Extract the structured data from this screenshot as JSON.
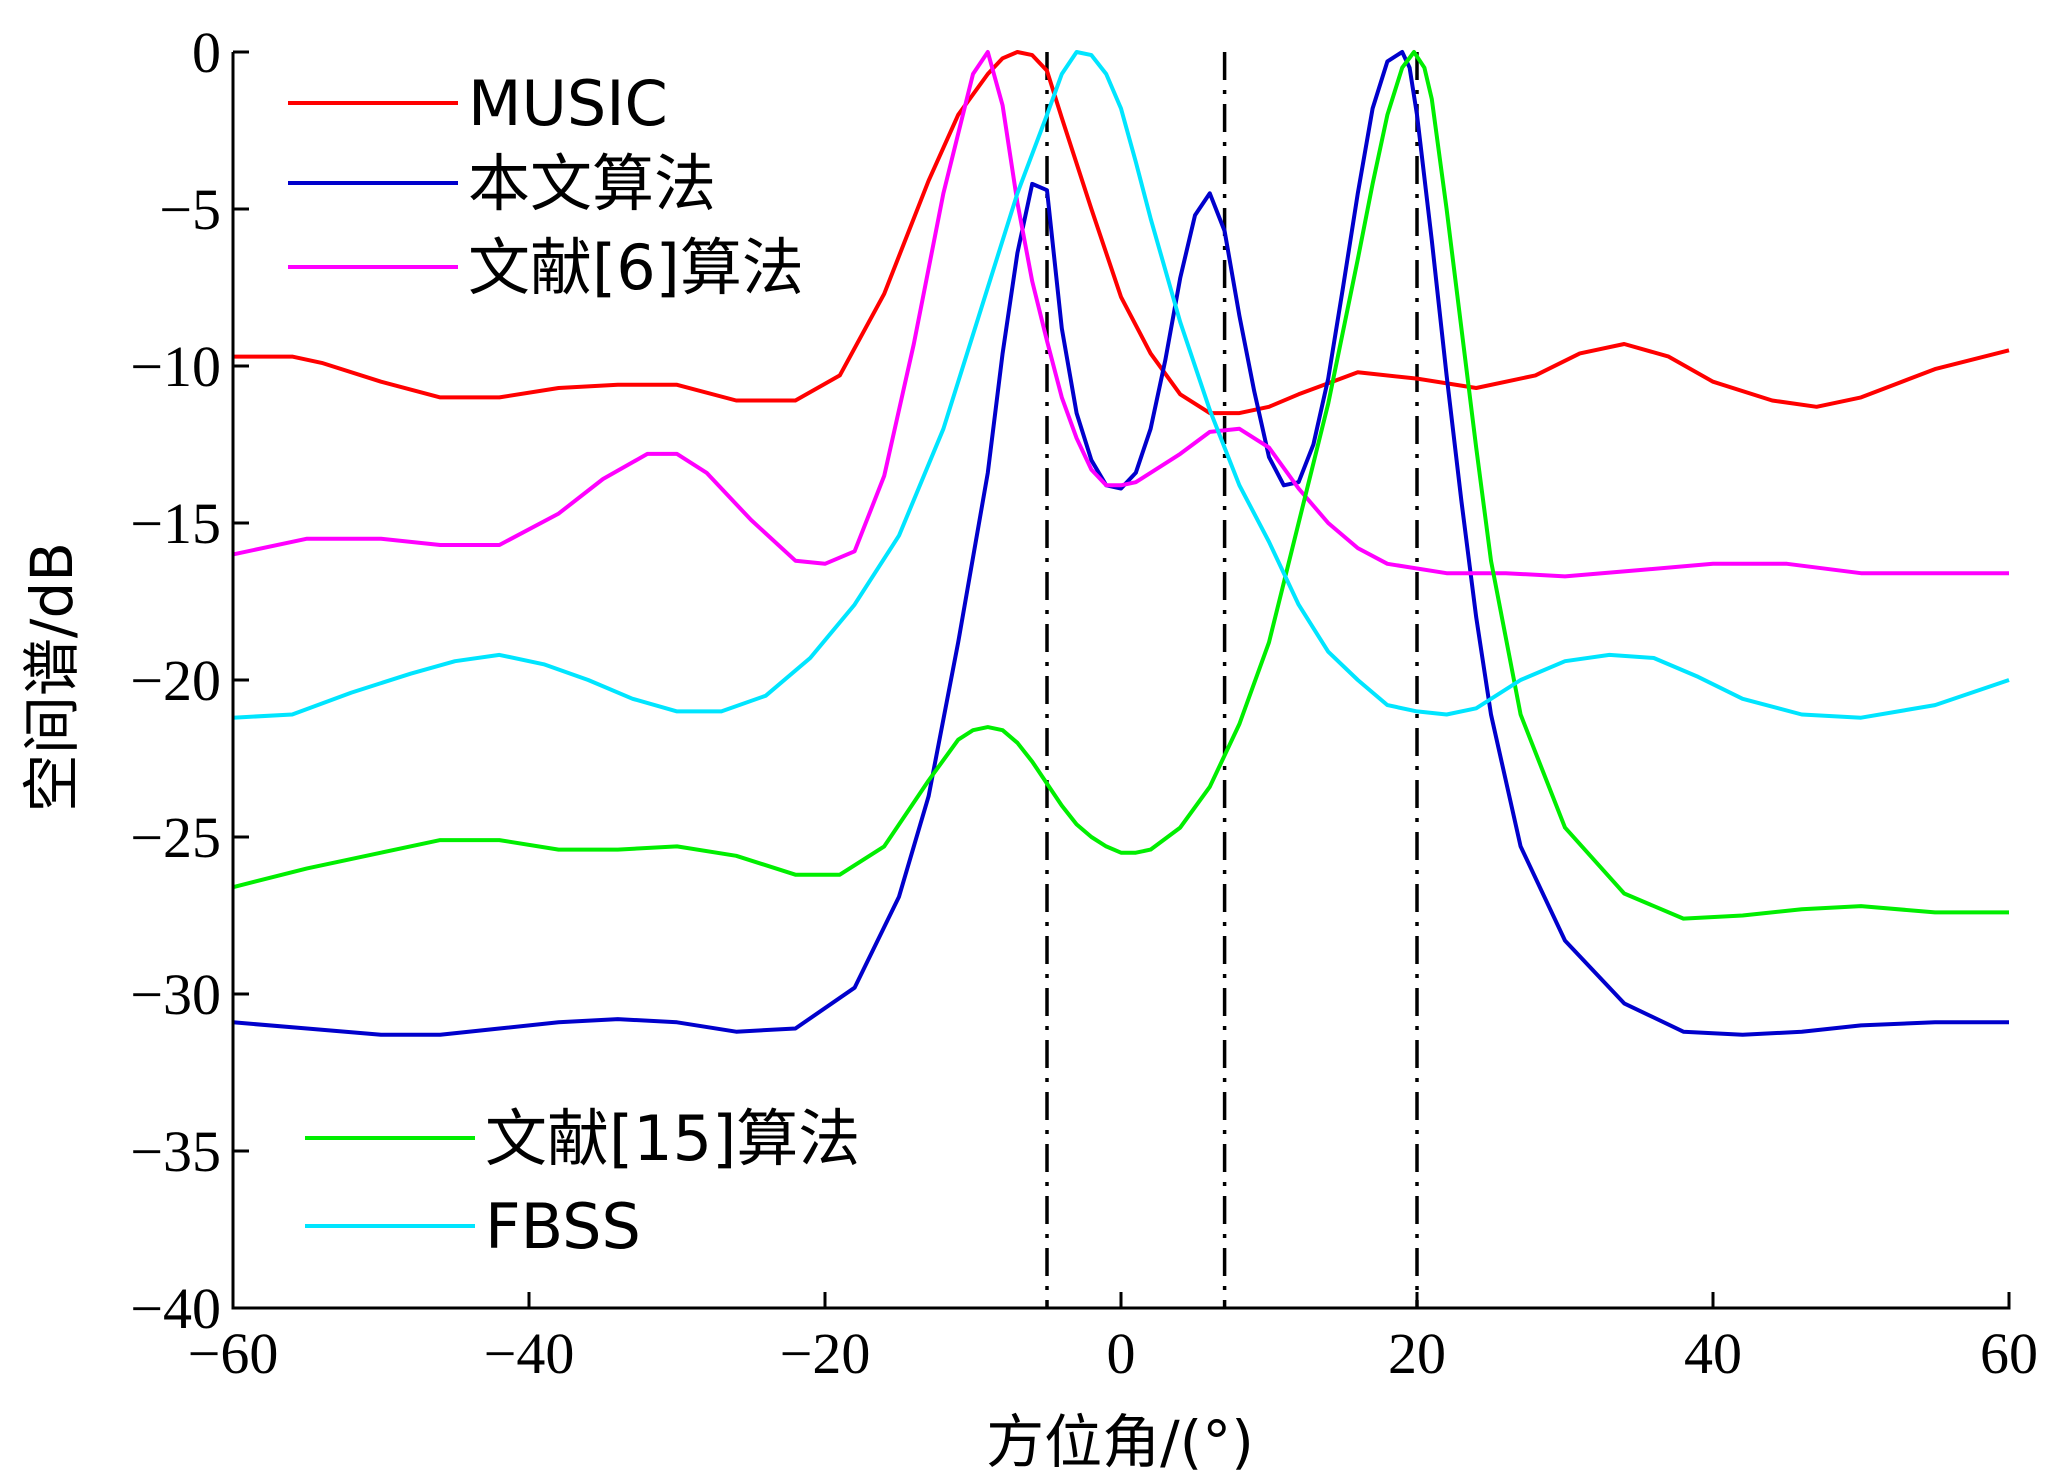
{
  "chart_data": {
    "type": "line",
    "xlabel": "方位角/(°)",
    "ylabel": "空间谱/dB",
    "xlim": [
      -60,
      60
    ],
    "ylim": [
      -40,
      0
    ],
    "xticks": [
      -60,
      -40,
      -20,
      0,
      20,
      40,
      60
    ],
    "yticks": [
      0,
      -5,
      -10,
      -15,
      -20,
      -25,
      -30,
      -35,
      -40
    ],
    "xtick_labels": [
      "−60",
      "−40",
      "−20",
      "0",
      "20",
      "40",
      "60"
    ],
    "ytick_labels": [
      "0",
      "−5",
      "−10",
      "−15",
      "−20",
      "−25",
      "−30",
      "−35",
      "−40"
    ],
    "grid": false,
    "reference_lines": [
      {
        "x": -5
      },
      {
        "x": 7
      },
      {
        "x": 20
      }
    ],
    "series": [
      {
        "name": "MUSIC",
        "color": "#ff0000",
        "x": [
          -60,
          -56,
          -54,
          -50,
          -46,
          -42,
          -38,
          -34,
          -30,
          -26,
          -22,
          -19,
          -16,
          -13,
          -11,
          -9,
          -8,
          -7,
          -6,
          -5,
          -4,
          -2,
          0,
          2,
          4,
          6,
          8,
          10,
          12,
          16,
          20,
          24,
          28,
          31,
          34,
          37,
          40,
          44,
          47,
          50,
          55,
          60
        ],
        "y": [
          -9.7,
          -9.7,
          -9.9,
          -10.5,
          -11,
          -11,
          -10.7,
          -10.6,
          -10.6,
          -11.1,
          -11.1,
          -10.3,
          -7.7,
          -4.1,
          -2,
          -0.7,
          -0.2,
          0,
          -0.1,
          -0.6,
          -2.1,
          -5,
          -7.8,
          -9.6,
          -10.9,
          -11.5,
          -11.5,
          -11.3,
          -10.9,
          -10.2,
          -10.4,
          -10.7,
          -10.3,
          -9.6,
          -9.3,
          -9.7,
          -10.5,
          -11.1,
          -11.3,
          -11,
          -10.1,
          -9.5
        ]
      },
      {
        "name": "本文算法",
        "color": "#0000cc",
        "x": [
          -60,
          -55,
          -50,
          -46,
          -42,
          -38,
          -34,
          -30,
          -26,
          -22,
          -18,
          -15,
          -13,
          -11,
          -9,
          -8,
          -7,
          -6,
          -5,
          -4,
          -3,
          -2,
          -1,
          0,
          1,
          2,
          3,
          4,
          5,
          6,
          7,
          8,
          9,
          10,
          11,
          12,
          13,
          14,
          15,
          16,
          17,
          18,
          19,
          19.5,
          20,
          21,
          22,
          23,
          24,
          25,
          27,
          30,
          34,
          38,
          42,
          46,
          50,
          55,
          60
        ],
        "y": [
          -30.9,
          -31.1,
          -31.3,
          -31.3,
          -31.1,
          -30.9,
          -30.8,
          -30.9,
          -31.2,
          -31.1,
          -29.8,
          -26.9,
          -23.7,
          -18.8,
          -13.4,
          -9.6,
          -6.4,
          -4.2,
          -4.4,
          -8.8,
          -11.5,
          -13,
          -13.8,
          -13.9,
          -13.4,
          -12,
          -9.8,
          -7.2,
          -5.2,
          -4.5,
          -5.7,
          -8.4,
          -10.8,
          -12.9,
          -13.8,
          -13.7,
          -12.5,
          -10.4,
          -7.5,
          -4.5,
          -1.8,
          -0.3,
          0,
          -0.5,
          -2,
          -6,
          -10.3,
          -14.3,
          -18,
          -21.1,
          -25.3,
          -28.3,
          -30.3,
          -31.2,
          -31.3,
          -31.2,
          -31,
          -30.9,
          -30.9
        ]
      },
      {
        "name": "文献[6]算法",
        "color": "#ff00ff",
        "x": [
          -60,
          -55,
          -50,
          -46,
          -42,
          -38,
          -35,
          -32,
          -30,
          -28,
          -25,
          -22,
          -20,
          -18,
          -16,
          -14,
          -12,
          -10,
          -9,
          -8,
          -7,
          -6,
          -5,
          -4,
          -3,
          -2,
          -1,
          0,
          1,
          2,
          4,
          6,
          8,
          10,
          12,
          14,
          16,
          18,
          22,
          26,
          30,
          35,
          40,
          45,
          50,
          55,
          60
        ],
        "y": [
          -16,
          -15.5,
          -15.5,
          -15.7,
          -15.7,
          -14.7,
          -13.6,
          -12.8,
          -12.8,
          -13.4,
          -14.9,
          -16.2,
          -16.3,
          -15.9,
          -13.5,
          -9.3,
          -4.5,
          -0.7,
          0,
          -1.7,
          -4.8,
          -7.3,
          -9.2,
          -11,
          -12.3,
          -13.3,
          -13.8,
          -13.8,
          -13.7,
          -13.4,
          -12.8,
          -12.1,
          -12,
          -12.6,
          -13.9,
          -15,
          -15.8,
          -16.3,
          -16.6,
          -16.6,
          -16.7,
          -16.5,
          -16.3,
          -16.3,
          -16.6,
          -16.6,
          -16.6
        ]
      },
      {
        "name": "文献[15]算法",
        "color": "#00ee00",
        "x": [
          -60,
          -55,
          -50,
          -46,
          -42,
          -38,
          -34,
          -30,
          -26,
          -22,
          -19,
          -16,
          -13,
          -11,
          -10,
          -9,
          -8,
          -7,
          -6,
          -5,
          -4,
          -3,
          -2,
          -1,
          0,
          1,
          2,
          4,
          6,
          8,
          10,
          12,
          14,
          16,
          17,
          18,
          19,
          19.8,
          20.5,
          21,
          22,
          23,
          24,
          25,
          27,
          30,
          34,
          38,
          42,
          46,
          50,
          55,
          60
        ],
        "y": [
          -26.6,
          -26,
          -25.5,
          -25.1,
          -25.1,
          -25.4,
          -25.4,
          -25.3,
          -25.6,
          -26.2,
          -26.2,
          -25.3,
          -23.2,
          -21.9,
          -21.6,
          -21.5,
          -21.6,
          -22,
          -22.6,
          -23.3,
          -24,
          -24.6,
          -25,
          -25.3,
          -25.5,
          -25.5,
          -25.4,
          -24.7,
          -23.4,
          -21.4,
          -18.8,
          -15,
          -11.2,
          -6.6,
          -4.2,
          -2,
          -0.5,
          0,
          -0.5,
          -1.5,
          -5,
          -8.8,
          -12.6,
          -16.2,
          -21.1,
          -24.7,
          -26.8,
          -27.6,
          -27.5,
          -27.3,
          -27.2,
          -27.4,
          -27.4
        ]
      },
      {
        "name": "FBSS",
        "color": "#00e5ff",
        "x": [
          -60,
          -56,
          -52,
          -48,
          -45,
          -42,
          -39,
          -36,
          -33,
          -30,
          -27,
          -24,
          -21,
          -18,
          -15,
          -12,
          -9,
          -7,
          -5,
          -4,
          -3,
          -2,
          -1,
          0,
          1,
          2,
          4,
          6,
          8,
          10,
          12,
          14,
          16,
          18,
          20,
          22,
          24,
          27,
          30,
          33,
          36,
          39,
          42,
          46,
          50,
          55,
          60
        ],
        "y": [
          -21.2,
          -21.1,
          -20.4,
          -19.8,
          -19.4,
          -19.2,
          -19.5,
          -20,
          -20.6,
          -21,
          -21,
          -20.5,
          -19.3,
          -17.6,
          -15.4,
          -12,
          -7.5,
          -4.5,
          -2,
          -0.7,
          0,
          -0.1,
          -0.7,
          -1.8,
          -3.5,
          -5.3,
          -8.6,
          -11.4,
          -13.8,
          -15.6,
          -17.6,
          -19.1,
          -20,
          -20.8,
          -21,
          -21.1,
          -20.9,
          -20,
          -19.4,
          -19.2,
          -19.3,
          -19.9,
          -20.6,
          -21.1,
          -21.2,
          -20.8,
          -20
        ]
      }
    ],
    "legend": [
      {
        "label": "MUSIC",
        "color": "#ff0000",
        "placement": "top-left"
      },
      {
        "label": "本文算法",
        "color": "#0000cc",
        "placement": "top-left"
      },
      {
        "label": "文献[6]算法",
        "color": "#ff00ff",
        "placement": "top-left"
      },
      {
        "label": "文献[15]算法",
        "color": "#00ee00",
        "placement": "bottom-left"
      },
      {
        "label": "FBSS",
        "color": "#00e5ff",
        "placement": "bottom-left"
      }
    ]
  }
}
